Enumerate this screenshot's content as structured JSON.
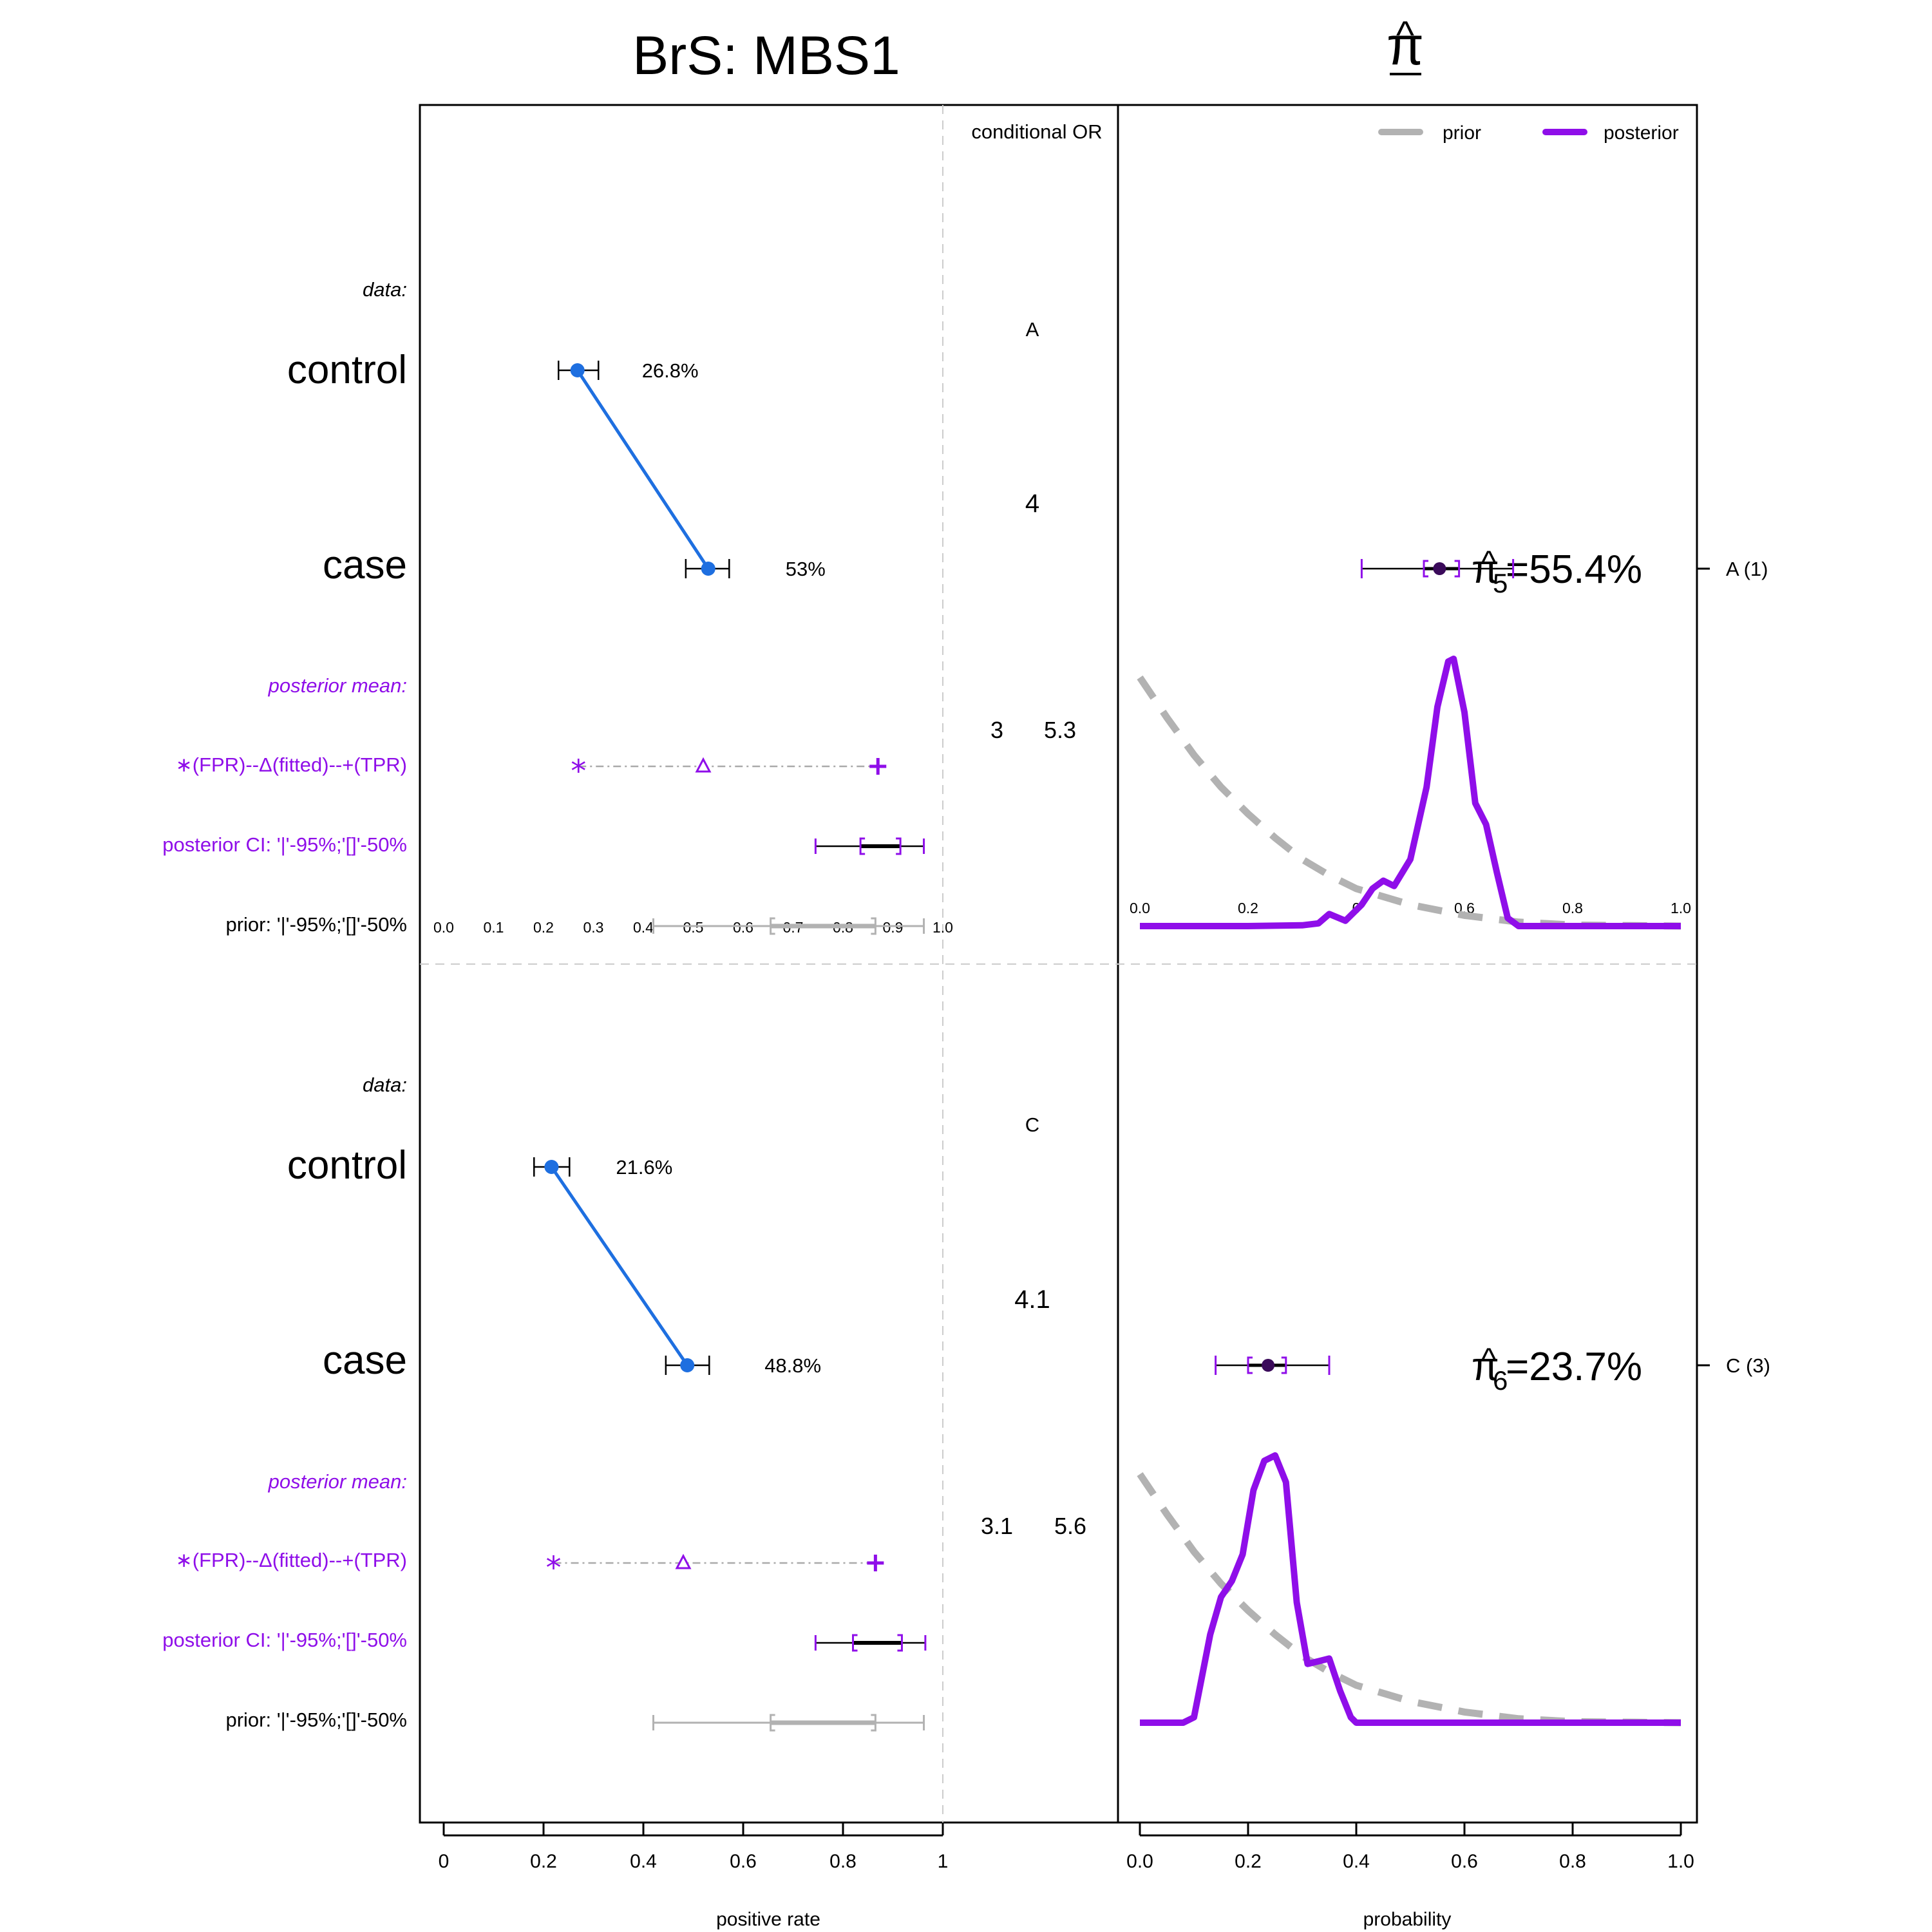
{
  "title": "BrS: MBS1",
  "pi_header": "π",
  "pi_header_hat": "^",
  "left_xlabel": "positive rate",
  "right_xlabel": "probability",
  "or_header": "conditional OR",
  "legend": {
    "prior": "prior",
    "posterior": "posterior"
  },
  "row_labels": {
    "data": "data:",
    "control": "control",
    "case": "case",
    "posterior_mean": "posterior mean:",
    "marker_legend": "∗(FPR)--Δ(fitted)--+(TPR)",
    "posterior_ci": "posterior CI: '|'-95%;'[]'-50%",
    "prior": "prior: '|'-95%;'[]'-50%"
  },
  "left_axis_ticks": [
    "0",
    "0.2",
    "0.4",
    "0.6",
    "0.8",
    "1"
  ],
  "inner_ticks": [
    "0.0",
    "0.1",
    "0.2",
    "0.3",
    "0.4",
    "0.5",
    "0.6",
    "0.7",
    "0.8",
    "0.9",
    "1.0"
  ],
  "right_axis_ticks": [
    "0.0",
    "0.2",
    "0.4",
    "0.6",
    "0.8",
    "1.0"
  ],
  "right_inner_ticks": [
    "0.0",
    "0.2",
    "0",
    "0.6",
    "0.8",
    "1.0"
  ],
  "colors": {
    "observed": "#1e6fe0",
    "posterior": "#8f0ee9",
    "prior": "#b2b2b2",
    "frame": "#000000",
    "divider": "#cccccc"
  },
  "chart_data": {
    "type": "scatter",
    "panels": [
      {
        "id": "A",
        "letter": "A",
        "right_label": "A (1)",
        "observed": {
          "control": {
            "value": 0.268,
            "ci": [
              0.23,
              0.31
            ],
            "label": "26.8%"
          },
          "case": {
            "value": 0.53,
            "ci": [
              0.485,
              0.572
            ],
            "label": "53%"
          }
        },
        "conditional_or": {
          "value": "4",
          "ci_low": "3",
          "ci_high": "5.3"
        },
        "posterior_mean": {
          "fpr": 0.27,
          "fitted": 0.52,
          "tpr": 0.87
        },
        "posterior_ci": {
          "ci95": [
            0.745,
            0.962
          ],
          "ci50": [
            0.835,
            0.915
          ]
        },
        "prior_ci": {
          "ci95": [
            0.42,
            0.962
          ],
          "ci50": [
            0.655,
            0.865
          ]
        },
        "pi": {
          "symbol": "π",
          "hat": "^",
          "subscript": "5",
          "text": "=55.4%",
          "mean": 0.554,
          "ci95": [
            0.41,
            0.69
          ],
          "ci50": [
            0.525,
            0.59
          ]
        },
        "posterior_density": {
          "x": [
            0,
            0.05,
            0.1,
            0.2,
            0.3,
            0.33,
            0.35,
            0.38,
            0.41,
            0.43,
            0.45,
            0.47,
            0.5,
            0.53,
            0.55,
            0.57,
            0.58,
            0.6,
            0.62,
            0.64,
            0.66,
            0.68,
            0.7,
            0.75,
            0.8,
            1.0
          ],
          "y": [
            0,
            0,
            0,
            0,
            0.003,
            0.01,
            0.045,
            0.02,
            0.08,
            0.14,
            0.17,
            0.15,
            0.25,
            0.52,
            0.82,
            0.99,
            1.0,
            0.8,
            0.46,
            0.38,
            0.2,
            0.03,
            0,
            0,
            0,
            0
          ]
        },
        "prior_density": {
          "x": [
            0,
            0.05,
            0.1,
            0.15,
            0.2,
            0.25,
            0.3,
            0.35,
            0.4,
            0.5,
            0.6,
            0.7,
            0.8,
            1.0
          ],
          "y": [
            0.93,
            0.78,
            0.64,
            0.52,
            0.42,
            0.33,
            0.25,
            0.19,
            0.14,
            0.08,
            0.04,
            0.015,
            0.004,
            0
          ]
        }
      },
      {
        "id": "C",
        "letter": "C",
        "right_label": "C (3)",
        "observed": {
          "control": {
            "value": 0.216,
            "ci": [
              0.181,
              0.252
            ],
            "label": "21.6%"
          },
          "case": {
            "value": 0.488,
            "ci": [
              0.445,
              0.532
            ],
            "label": "48.8%"
          }
        },
        "conditional_or": {
          "value": "4.1",
          "ci_low": "3.1",
          "ci_high": "5.6"
        },
        "posterior_mean": {
          "fpr": 0.22,
          "fitted": 0.48,
          "tpr": 0.865
        },
        "posterior_ci": {
          "ci95": [
            0.745,
            0.965
          ],
          "ci50": [
            0.82,
            0.918
          ]
        },
        "prior_ci": {
          "ci95": [
            0.42,
            0.962
          ],
          "ci50": [
            0.655,
            0.865
          ]
        },
        "pi": {
          "symbol": "π",
          "hat": "^",
          "subscript": "6",
          "text": "=23.7%",
          "mean": 0.237,
          "ci95": [
            0.14,
            0.35
          ],
          "ci50": [
            0.2,
            0.27
          ]
        },
        "posterior_density": {
          "x": [
            0,
            0.05,
            0.08,
            0.1,
            0.13,
            0.15,
            0.17,
            0.19,
            0.21,
            0.23,
            0.25,
            0.27,
            0.29,
            0.31,
            0.33,
            0.35,
            0.37,
            0.39,
            0.4,
            0.45,
            0.6,
            1.0
          ],
          "y": [
            0,
            0,
            0,
            0.02,
            0.33,
            0.47,
            0.53,
            0.63,
            0.87,
            0.98,
            1.0,
            0.9,
            0.45,
            0.22,
            0.23,
            0.24,
            0.12,
            0.02,
            0,
            0,
            0,
            0
          ]
        },
        "prior_density": {
          "x": [
            0,
            0.05,
            0.1,
            0.15,
            0.2,
            0.25,
            0.3,
            0.35,
            0.4,
            0.5,
            0.6,
            0.7,
            0.8,
            1.0
          ],
          "y": [
            0.93,
            0.78,
            0.64,
            0.52,
            0.42,
            0.33,
            0.25,
            0.19,
            0.14,
            0.08,
            0.04,
            0.015,
            0.004,
            0
          ]
        }
      }
    ],
    "xlim_left": [
      0,
      1
    ],
    "xlim_right": [
      0,
      1
    ]
  }
}
